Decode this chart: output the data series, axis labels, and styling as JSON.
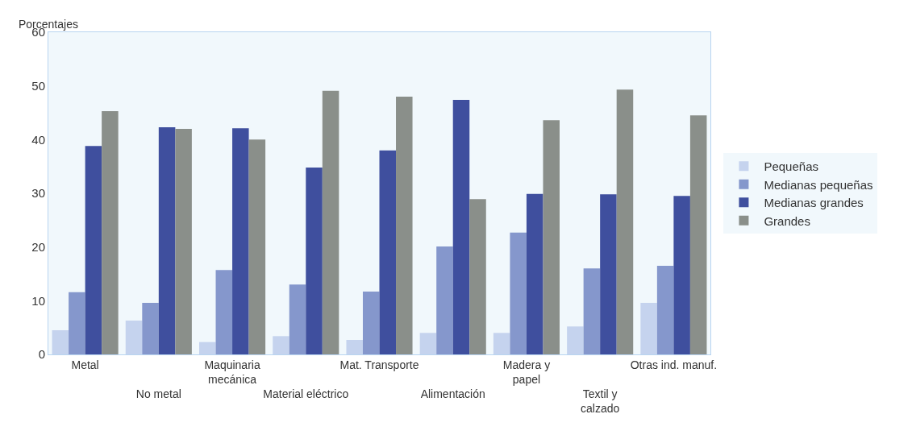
{
  "chart_data": {
    "type": "bar",
    "ylabel": "Porcentajes",
    "categories": [
      "Metal",
      "No metal",
      "Maquinaria\nmecánica",
      "Material eléctrico",
      "Mat. Transporte",
      "Alimentación",
      "Madera y\npapel",
      "Textil y\ncalzado",
      "Otras ind. manuf."
    ],
    "series": [
      {
        "name": "Pequeñas",
        "color": "#c5d3ee",
        "values": [
          4.5,
          6.3,
          2.3,
          3.4,
          2.7,
          4.0,
          4.0,
          5.2,
          9.6
        ]
      },
      {
        "name": "Medianas pequeñas",
        "color": "#8597cc",
        "values": [
          11.6,
          9.6,
          15.7,
          13.0,
          11.7,
          20.1,
          22.7,
          16.0,
          16.5
        ]
      },
      {
        "name": "Medianas grandes",
        "color": "#3f4f9e",
        "values": [
          38.8,
          42.3,
          42.1,
          34.8,
          38.0,
          47.4,
          29.9,
          29.8,
          29.5
        ]
      },
      {
        "name": "Grandes",
        "color": "#8a8f8a",
        "values": [
          45.3,
          42.0,
          40.0,
          49.1,
          48.0,
          28.9,
          43.6,
          49.3,
          44.5
        ]
      }
    ],
    "ylim": [
      0,
      60
    ],
    "yticks": [
      0,
      10,
      20,
      30,
      40,
      50,
      60
    ],
    "grid": false,
    "legend": "right"
  }
}
